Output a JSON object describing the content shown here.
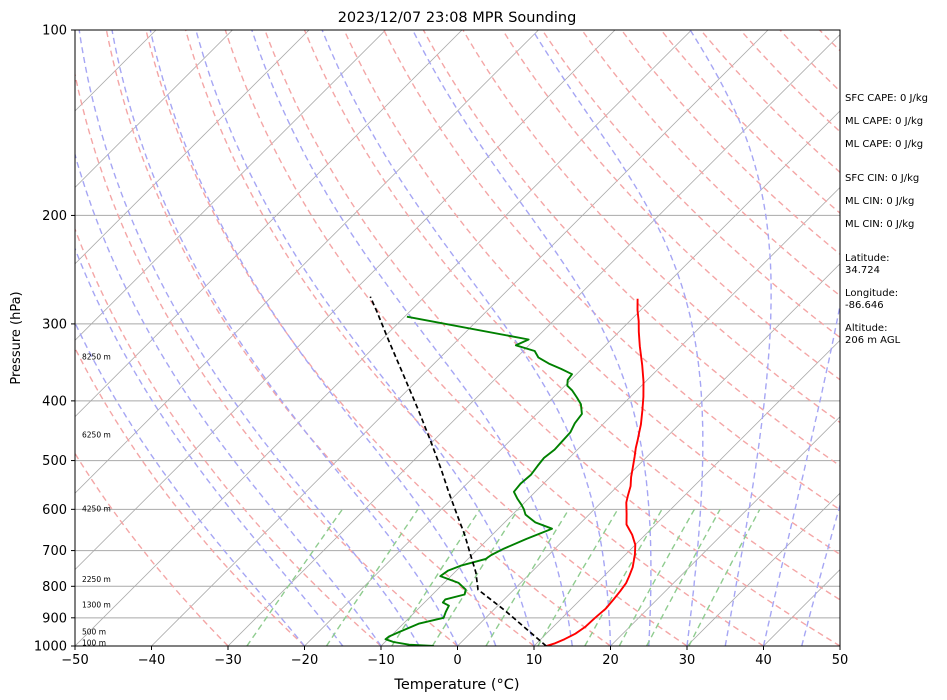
{
  "chart_data": {
    "type": "line",
    "title": "2023/12/07 23:08 MPR Sounding",
    "xlabel": "Temperature (°C)",
    "ylabel": "Pressure (hPa)",
    "xlim": [
      -50,
      50
    ],
    "ylim": [
      1000,
      100
    ],
    "y_scale": "log",
    "skew": true,
    "x_ticks": [
      "−50",
      "−40",
      "−30",
      "−20",
      "−10",
      "0",
      "10",
      "20",
      "30",
      "40",
      "50"
    ],
    "x_tick_values": [
      -50,
      -40,
      -30,
      -20,
      -10,
      0,
      10,
      20,
      30,
      40,
      50
    ],
    "y_ticks": [
      "100",
      "200",
      "300",
      "400",
      "500",
      "600",
      "700",
      "800",
      "900",
      "1000"
    ],
    "y_tick_values": [
      100,
      200,
      300,
      400,
      500,
      600,
      700,
      800,
      900,
      1000
    ],
    "grid": true,
    "colors": {
      "temperature": "#ff0000",
      "dewpoint": "#008000",
      "parcel": "#000000",
      "dry_adiabats": "#f4a6a6",
      "moist_adiabats": "#a6a6f4",
      "mixing_ratio": "#8fcc8f",
      "isotherms": "#a9a9a9"
    },
    "series": [
      {
        "key": "temperature",
        "points": [
          [
            11.6,
            1000
          ],
          [
            12.4,
            990
          ],
          [
            13.1,
            975
          ],
          [
            13.8,
            955
          ],
          [
            14.2,
            930
          ],
          [
            14.3,
            900
          ],
          [
            14.5,
            870
          ],
          [
            14.3,
            840
          ],
          [
            14.1,
            815
          ],
          [
            13.8,
            790
          ],
          [
            13.3,
            770
          ],
          [
            12.6,
            745
          ],
          [
            11.2,
            710
          ],
          [
            10.0,
            685
          ],
          [
            8.3,
            660
          ],
          [
            6.2,
            635
          ],
          [
            4.8,
            610
          ],
          [
            3.3,
            585
          ],
          [
            2.6,
            570
          ],
          [
            1.7,
            550
          ],
          [
            0.6,
            532
          ],
          [
            -0.5,
            512
          ],
          [
            -1.6,
            493
          ],
          [
            -2.6,
            477
          ],
          [
            -3.4,
            463
          ],
          [
            -4.2,
            450
          ],
          [
            -5.0,
            437
          ],
          [
            -6.7,
            414
          ],
          [
            -8.3,
            394
          ],
          [
            -10.3,
            372
          ],
          [
            -12.6,
            350
          ],
          [
            -15.4,
            326
          ],
          [
            -17.4,
            309
          ],
          [
            -18.8,
            297
          ],
          [
            -20.4,
            285
          ],
          [
            -21.9,
            273
          ]
        ]
      },
      {
        "key": "dewpoint",
        "points": [
          [
            -3.1,
            1000
          ],
          [
            -6.5,
            995
          ],
          [
            -8.9,
            985
          ],
          [
            -10.3,
            975
          ],
          [
            -10.2,
            965
          ],
          [
            -9.5,
            950
          ],
          [
            -8.0,
            920
          ],
          [
            -5.5,
            900
          ],
          [
            -6.0,
            880
          ],
          [
            -6.4,
            860
          ],
          [
            -7.6,
            850
          ],
          [
            -7.7,
            840
          ],
          [
            -5.8,
            825
          ],
          [
            -6.3,
            810
          ],
          [
            -8.1,
            790
          ],
          [
            -11.4,
            770
          ],
          [
            -11.1,
            755
          ],
          [
            -10.0,
            740
          ],
          [
            -7.7,
            722
          ],
          [
            -7.5,
            712
          ],
          [
            -6.7,
            695
          ],
          [
            -5.0,
            670
          ],
          [
            -3.0,
            645
          ],
          [
            -6.0,
            630
          ],
          [
            -8.3,
            612
          ],
          [
            -9.2,
            600
          ],
          [
            -10.1,
            590
          ],
          [
            -11.4,
            577
          ],
          [
            -12.8,
            562
          ],
          [
            -13.0,
            545
          ],
          [
            -12.8,
            527
          ],
          [
            -13.1,
            510
          ],
          [
            -13.3,
            495
          ],
          [
            -13.0,
            480
          ],
          [
            -13.1,
            465
          ],
          [
            -13.2,
            450
          ],
          [
            -13.8,
            435
          ],
          [
            -14.1,
            420
          ],
          [
            -15.5,
            405
          ],
          [
            -16.9,
            395
          ],
          [
            -18.4,
            385
          ],
          [
            -19.7,
            378
          ],
          [
            -20.4,
            370
          ],
          [
            -20.6,
            362
          ],
          [
            -22.7,
            355
          ],
          [
            -25.0,
            348
          ],
          [
            -27.2,
            340
          ],
          [
            -28.5,
            332
          ],
          [
            -31.7,
            325
          ],
          [
            -30.8,
            318
          ],
          [
            -49.7,
            292
          ]
        ]
      },
      {
        "key": "parcel",
        "points": [
          [
            11.6,
            1000
          ],
          [
            1.5,
            875
          ],
          [
            -4.7,
            810
          ],
          [
            -7.2,
            760
          ],
          [
            -10.3,
            710
          ],
          [
            -13.6,
            660
          ],
          [
            -17.4,
            610
          ],
          [
            -21.5,
            560
          ],
          [
            -25.4,
            515
          ],
          [
            -30.3,
            465
          ],
          [
            -36.1,
            413
          ],
          [
            -42.4,
            364
          ],
          [
            -49.0,
            319
          ],
          [
            -54.2,
            287
          ],
          [
            -57.1,
            271
          ]
        ]
      }
    ],
    "height_labels": [
      "8250 m",
      "6250 m",
      "4250 m",
      "2250 m",
      "1300 m",
      "500 m",
      "100 m"
    ],
    "height_label_pressures": [
      340,
      455,
      600,
      782,
      860,
      950,
      990
    ],
    "side_info": [
      "SFC CAPE: 0 J/kg",
      "ML CAPE: 0 J/kg",
      "ML CAPE: 0 J/kg",
      "SFC CIN: 0 J/kg",
      "ML CIN: 0 J/kg",
      "ML CIN: 0 J/kg",
      "Latitude:\n34.724",
      "Longitude:\n-86.646",
      "Altitude:\n206 m AGL"
    ]
  }
}
